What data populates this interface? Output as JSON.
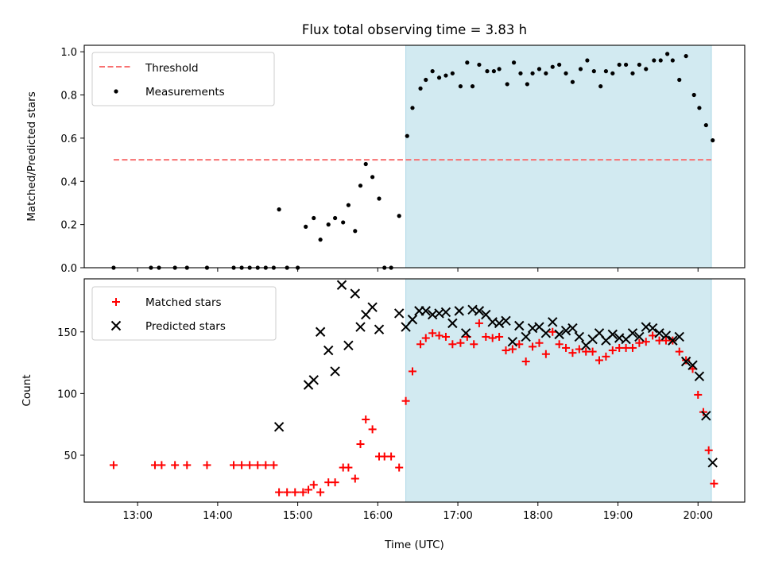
{
  "title": "Flux total observing time = 3.83 h",
  "colors": {
    "threshold": "#f87171",
    "measurements": "#000000",
    "matched": "#ff0000",
    "predicted": "#000000",
    "window": "#add8e6"
  },
  "chart_data": [
    {
      "type": "scatter",
      "panel": "top",
      "ylabel": "Matched/Predicted stars",
      "xlabel": "",
      "xlim": [
        "12:20",
        "20:35"
      ],
      "ylim": [
        0,
        1.03
      ],
      "x_ticks": [
        "13:00",
        "14:00",
        "15:00",
        "16:00",
        "17:00",
        "18:00",
        "19:00",
        "20:00"
      ],
      "y_ticks": [
        "0.0",
        "0.2",
        "0.4",
        "0.6",
        "0.8",
        "1.0"
      ],
      "observing_window": [
        "16:21",
        "20:10"
      ],
      "threshold": {
        "name": "Threshold",
        "value": 0.5,
        "x_range": [
          "12:42",
          "20:10"
        ]
      },
      "series": [
        {
          "name": "Measurements",
          "marker": "dot",
          "points": [
            [
              "12:42",
              0.0
            ],
            [
              "13:10",
              0.0
            ],
            [
              "13:16",
              0.0
            ],
            [
              "13:28",
              0.0
            ],
            [
              "13:37",
              0.0
            ],
            [
              "13:52",
              0.0
            ],
            [
              "14:12",
              0.0
            ],
            [
              "14:18",
              0.0
            ],
            [
              "14:24",
              0.0
            ],
            [
              "14:30",
              0.0
            ],
            [
              "14:36",
              0.0
            ],
            [
              "14:42",
              0.0
            ],
            [
              "14:46",
              0.27
            ],
            [
              "14:52",
              0.0
            ],
            [
              "15:00",
              0.0
            ],
            [
              "15:06",
              0.19
            ],
            [
              "15:12",
              0.23
            ],
            [
              "15:17",
              0.13
            ],
            [
              "15:23",
              0.2
            ],
            [
              "15:28",
              0.23
            ],
            [
              "15:34",
              0.21
            ],
            [
              "15:38",
              0.29
            ],
            [
              "15:43",
              0.17
            ],
            [
              "15:47",
              0.38
            ],
            [
              "15:51",
              0.48
            ],
            [
              "15:56",
              0.42
            ],
            [
              "16:01",
              0.32
            ],
            [
              "16:05",
              0.0
            ],
            [
              "16:10",
              0.0
            ],
            [
              "16:16",
              0.24
            ],
            [
              "16:22",
              0.61
            ],
            [
              "16:26",
              0.74
            ],
            [
              "16:32",
              0.83
            ],
            [
              "16:36",
              0.87
            ],
            [
              "16:41",
              0.91
            ],
            [
              "16:46",
              0.88
            ],
            [
              "16:51",
              0.89
            ],
            [
              "16:56",
              0.9
            ],
            [
              "17:02",
              0.84
            ],
            [
              "17:07",
              0.95
            ],
            [
              "17:11",
              0.84
            ],
            [
              "17:16",
              0.94
            ],
            [
              "17:22",
              0.91
            ],
            [
              "17:27",
              0.91
            ],
            [
              "17:31",
              0.92
            ],
            [
              "17:37",
              0.85
            ],
            [
              "17:42",
              0.95
            ],
            [
              "17:47",
              0.9
            ],
            [
              "17:52",
              0.85
            ],
            [
              "17:56",
              0.9
            ],
            [
              "18:01",
              0.92
            ],
            [
              "18:06",
              0.9
            ],
            [
              "18:11",
              0.93
            ],
            [
              "18:16",
              0.94
            ],
            [
              "18:21",
              0.9
            ],
            [
              "18:26",
              0.86
            ],
            [
              "18:32",
              0.92
            ],
            [
              "18:37",
              0.96
            ],
            [
              "18:42",
              0.91
            ],
            [
              "18:47",
              0.84
            ],
            [
              "18:51",
              0.91
            ],
            [
              "18:56",
              0.9
            ],
            [
              "19:01",
              0.94
            ],
            [
              "19:06",
              0.94
            ],
            [
              "19:11",
              0.9
            ],
            [
              "19:16",
              0.94
            ],
            [
              "19:21",
              0.92
            ],
            [
              "19:27",
              0.96
            ],
            [
              "19:32",
              0.96
            ],
            [
              "19:37",
              0.99
            ],
            [
              "19:41",
              0.96
            ],
            [
              "19:46",
              0.87
            ],
            [
              "19:51",
              0.98
            ],
            [
              "19:57",
              0.8
            ],
            [
              "20:01",
              0.74
            ],
            [
              "20:06",
              0.66
            ],
            [
              "20:11",
              0.59
            ]
          ]
        }
      ],
      "legend": {
        "placement": "top-left",
        "entries": [
          "Threshold",
          "Measurements"
        ]
      }
    },
    {
      "type": "scatter",
      "panel": "bottom",
      "ylabel": "Count",
      "xlabel": "Time (UTC)",
      "xlim": [
        "12:20",
        "20:35"
      ],
      "ylim": [
        12,
        193
      ],
      "x_ticks": [
        "13:00",
        "14:00",
        "15:00",
        "16:00",
        "17:00",
        "18:00",
        "19:00",
        "20:00"
      ],
      "y_ticks": [
        "50",
        "100",
        "150"
      ],
      "observing_window": [
        "16:21",
        "20:10"
      ],
      "series": [
        {
          "name": "Matched stars",
          "marker": "plus",
          "points": [
            [
              "12:42",
              42
            ],
            [
              "13:13",
              42
            ],
            [
              "13:18",
              42
            ],
            [
              "13:28",
              42
            ],
            [
              "13:37",
              42
            ],
            [
              "13:52",
              42
            ],
            [
              "14:12",
              42
            ],
            [
              "14:18",
              42
            ],
            [
              "14:24",
              42
            ],
            [
              "14:30",
              42
            ],
            [
              "14:36",
              42
            ],
            [
              "14:42",
              42
            ],
            [
              "14:46",
              20
            ],
            [
              "14:52",
              20
            ],
            [
              "14:58",
              20
            ],
            [
              "15:04",
              20
            ],
            [
              "15:08",
              22
            ],
            [
              "15:12",
              26
            ],
            [
              "15:17",
              20
            ],
            [
              "15:23",
              28
            ],
            [
              "15:28",
              28
            ],
            [
              "15:34",
              40
            ],
            [
              "15:38",
              40
            ],
            [
              "15:43",
              31
            ],
            [
              "15:47",
              59
            ],
            [
              "15:51",
              79
            ],
            [
              "15:56",
              71
            ],
            [
              "16:01",
              49
            ],
            [
              "16:05",
              49
            ],
            [
              "16:10",
              49
            ],
            [
              "16:16",
              40
            ],
            [
              "16:21",
              94
            ],
            [
              "16:26",
              118
            ],
            [
              "16:32",
              140
            ],
            [
              "16:36",
              145
            ],
            [
              "16:41",
              149
            ],
            [
              "16:46",
              147
            ],
            [
              "16:51",
              146
            ],
            [
              "16:56",
              140
            ],
            [
              "17:02",
              141
            ],
            [
              "17:07",
              146
            ],
            [
              "17:12",
              140
            ],
            [
              "17:16",
              157
            ],
            [
              "17:21",
              146
            ],
            [
              "17:26",
              145
            ],
            [
              "17:31",
              146
            ],
            [
              "17:36",
              135
            ],
            [
              "17:41",
              136
            ],
            [
              "17:46",
              140
            ],
            [
              "17:51",
              126
            ],
            [
              "17:56",
              138
            ],
            [
              "18:01",
              141
            ],
            [
              "18:06",
              132
            ],
            [
              "18:11",
              150
            ],
            [
              "18:16",
              140
            ],
            [
              "18:21",
              137
            ],
            [
              "18:26",
              133
            ],
            [
              "18:31",
              136
            ],
            [
              "18:36",
              134
            ],
            [
              "18:41",
              134
            ],
            [
              "18:46",
              127
            ],
            [
              "18:51",
              130
            ],
            [
              "18:56",
              135
            ],
            [
              "19:01",
              137
            ],
            [
              "19:06",
              137
            ],
            [
              "19:11",
              137
            ],
            [
              "19:16",
              141
            ],
            [
              "19:21",
              142
            ],
            [
              "19:26",
              147
            ],
            [
              "19:31",
              143
            ],
            [
              "19:36",
              143
            ],
            [
              "19:41",
              143
            ],
            [
              "19:46",
              134
            ],
            [
              "19:51",
              127
            ],
            [
              "19:56",
              120
            ],
            [
              "20:00",
              99
            ],
            [
              "20:04",
              85
            ],
            [
              "20:08",
              54
            ],
            [
              "20:12",
              27
            ]
          ]
        },
        {
          "name": "Predicted stars",
          "marker": "x",
          "points": [
            [
              "14:46",
              73
            ],
            [
              "15:08",
              107
            ],
            [
              "15:12",
              111
            ],
            [
              "15:17",
              150
            ],
            [
              "15:23",
              135
            ],
            [
              "15:28",
              118
            ],
            [
              "15:33",
              188
            ],
            [
              "15:38",
              139
            ],
            [
              "15:43",
              181
            ],
            [
              "15:47",
              154
            ],
            [
              "15:51",
              164
            ],
            [
              "15:56",
              170
            ],
            [
              "16:01",
              152
            ],
            [
              "16:16",
              165
            ],
            [
              "16:21",
              154
            ],
            [
              "16:26",
              160
            ],
            [
              "16:31",
              167
            ],
            [
              "16:36",
              167
            ],
            [
              "16:41",
              164
            ],
            [
              "16:46",
              165
            ],
            [
              "16:51",
              166
            ],
            [
              "16:56",
              157
            ],
            [
              "17:01",
              167
            ],
            [
              "17:06",
              149
            ],
            [
              "17:11",
              168
            ],
            [
              "17:16",
              167
            ],
            [
              "17:21",
              164
            ],
            [
              "17:26",
              158
            ],
            [
              "17:31",
              157
            ],
            [
              "17:36",
              159
            ],
            [
              "17:41",
              142
            ],
            [
              "17:46",
              155
            ],
            [
              "17:51",
              146
            ],
            [
              "17:56",
              153
            ],
            [
              "18:01",
              154
            ],
            [
              "18:06",
              149
            ],
            [
              "18:11",
              158
            ],
            [
              "18:16",
              148
            ],
            [
              "18:21",
              151
            ],
            [
              "18:26",
              153
            ],
            [
              "18:31",
              146
            ],
            [
              "18:36",
              139
            ],
            [
              "18:41",
              144
            ],
            [
              "18:46",
              149
            ],
            [
              "18:51",
              143
            ],
            [
              "18:56",
              148
            ],
            [
              "19:01",
              145
            ],
            [
              "19:06",
              144
            ],
            [
              "19:11",
              149
            ],
            [
              "19:16",
              146
            ],
            [
              "19:21",
              154
            ],
            [
              "19:26",
              153
            ],
            [
              "19:31",
              149
            ],
            [
              "19:36",
              147
            ],
            [
              "19:41",
              143
            ],
            [
              "19:46",
              146
            ],
            [
              "19:51",
              126
            ],
            [
              "19:56",
              123
            ],
            [
              "20:01",
              114
            ],
            [
              "20:06",
              82
            ],
            [
              "20:11",
              44
            ]
          ]
        }
      ],
      "legend": {
        "placement": "top-left",
        "entries": [
          "Matched stars",
          "Predicted stars"
        ]
      }
    }
  ]
}
